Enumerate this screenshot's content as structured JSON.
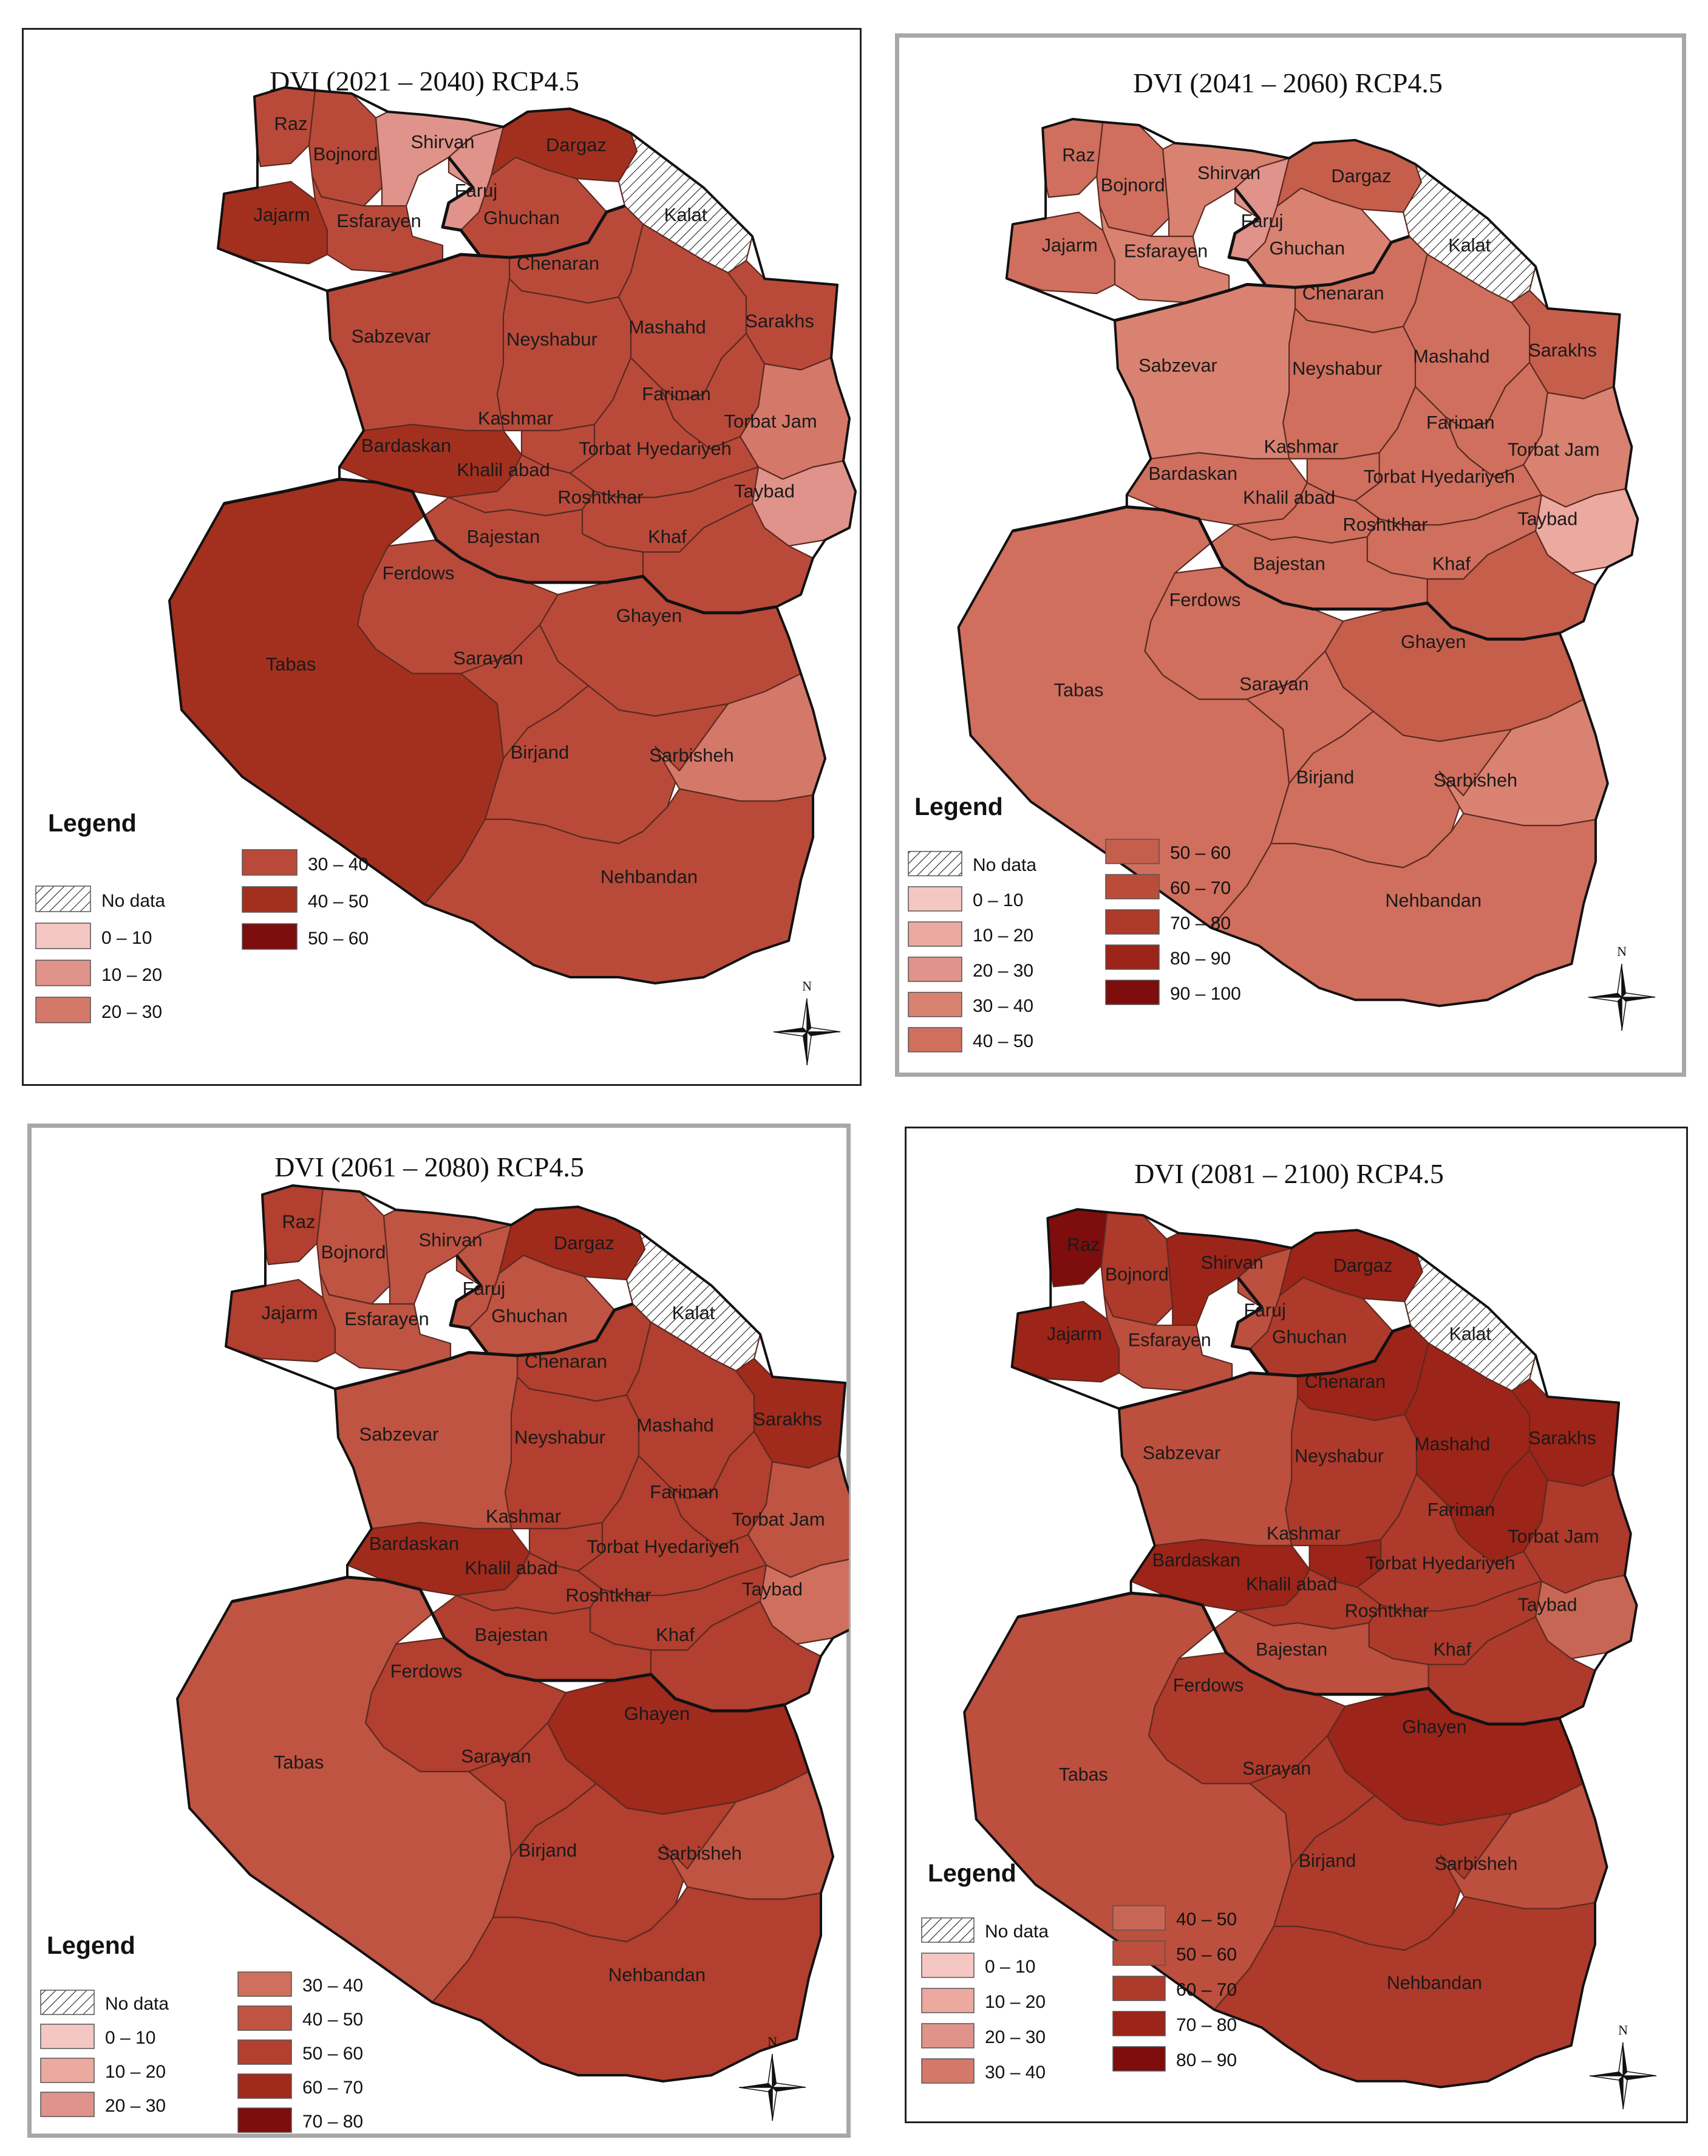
{
  "colors": {
    "class_0_10": "#f5c7c3",
    "class_10_20": "#eca9a0",
    "class_20_30": "#e0938a",
    "class_30_40": "#d4786a",
    "class_40_50": "#c86655",
    "class_50_60": "#bc4f3e",
    "class_60_70": "#ad3a2b",
    "class_70_80": "#a32e20",
    "class_80_90": "#951e15",
    "class_90_100": "#7e0d0d",
    "no_data_hatch": "#111111"
  },
  "region_labels": {
    "Raz": "Raz",
    "Bojnord": "Bojnord",
    "Shirvan": "Shirvan",
    "Faruj": "Faruj",
    "Jajarm": "Jajarm",
    "Esfarayen": "Esfarayen",
    "Dargaz": "Dargaz",
    "Ghuchan": "Ghuchan",
    "Kalat": "Kalat",
    "Chenaran": "Chenaran",
    "Sabzevar": "Sabzevar",
    "Neyshabur": "Neyshabur",
    "Mashahd": "Mashahd",
    "Sarakhs": "Sarakhs",
    "Fariman": "Fariman",
    "TorbatJam": "Torbat Jam",
    "Kashmar": "Kashmar",
    "Bardaskan": "Bardaskan",
    "TorbatHyedariyeh": "Torbat Hyedariyeh",
    "Khalilabad": "Khalil abad",
    "Taybad": "Taybad",
    "Roshtkhar": "Roshtkhar",
    "Bajestan": "Bajestan",
    "Khaf": "Khaf",
    "Ferdows": "Ferdows",
    "Tabas": "Tabas",
    "Ghayen": "Ghayen",
    "Sarayan": "Sarayan",
    "Birjand": "Birjand",
    "Sarbisheh": "Sarbisheh",
    "Nehbandan": "Nehbandan"
  },
  "maps": [
    {
      "title": "DVI (2021 –  2040) RCP4.5",
      "legend_title": "Legend",
      "no_data_label": "No data",
      "north_label": "N",
      "legend_items": [
        {
          "label": "0 –  10",
          "color": "#f5c7c3"
        },
        {
          "label": "10 –  20",
          "color": "#e0938a"
        },
        {
          "label": "20 –  30",
          "color": "#d4786a"
        },
        {
          "label": "30 –  40",
          "color": "#b94a3a"
        },
        {
          "label": "40 –  50",
          "color": "#a3301f"
        },
        {
          "label": "50 –  60",
          "color": "#7e0d0d"
        }
      ],
      "region_values": {
        "Raz": "30-40",
        "Bojnord": "30-40",
        "Shirvan": "10-20",
        "Faruj": "10-20",
        "Jajarm": "40-50",
        "Esfarayen": "30-40",
        "Dargaz": "40-50",
        "Ghuchan": "30-40",
        "Kalat": "No data",
        "Chenaran": "30-40",
        "Sabzevar": "30-40",
        "Neyshabur": "30-40",
        "Mashahd": "30-40",
        "Sarakhs": "30-40",
        "Fariman": "30-40",
        "TorbatJam": "20-30",
        "Kashmar": "30-40",
        "Bardaskan": "40-50",
        "TorbatHyedariyeh": "30-40",
        "Khalilabad": "30-40",
        "Taybad": "10-20",
        "Roshtkhar": "30-40",
        "Bajestan": "30-40",
        "Khaf": "30-40",
        "Ferdows": "30-40",
        "Tabas": "40-50",
        "Ghayen": "30-40",
        "Sarayan": "30-40",
        "Birjand": "30-40",
        "Sarbisheh": "20-30",
        "Nehbandan": "30-40"
      }
    },
    {
      "title": "DVI (2041 – 2060) RCP4.5",
      "legend_title": "Legend",
      "no_data_label": "No data",
      "north_label": "N",
      "legend_items": [
        {
          "label": "0 – 10",
          "color": "#f5c7c3"
        },
        {
          "label": "10 – 20",
          "color": "#eca9a0"
        },
        {
          "label": "20 – 30",
          "color": "#e0938a"
        },
        {
          "label": "30 – 40",
          "color": "#d98271"
        },
        {
          "label": "40 – 50",
          "color": "#d06f5e"
        },
        {
          "label": "50 – 60",
          "color": "#c65e4c"
        },
        {
          "label": "60 – 70",
          "color": "#bc4c3a"
        },
        {
          "label": "70 – 80",
          "color": "#ad3a2b"
        },
        {
          "label": "80 – 90",
          "color": "#9c2418"
        },
        {
          "label": "90 – 100",
          "color": "#7e0d0d"
        }
      ],
      "region_values": {
        "Raz": "40-50",
        "Bojnord": "40-50",
        "Shirvan": "30-40",
        "Faruj": "20-30",
        "Jajarm": "40-50",
        "Esfarayen": "30-40",
        "Dargaz": "50-60",
        "Ghuchan": "30-40",
        "Kalat": "No data",
        "Chenaran": "40-50",
        "Sabzevar": "30-40",
        "Neyshabur": "40-50",
        "Mashahd": "40-50",
        "Sarakhs": "50-60",
        "Fariman": "40-50",
        "TorbatJam": "30-40",
        "Kashmar": "40-50",
        "Bardaskan": "40-50",
        "TorbatHyedariyeh": "40-50",
        "Khalilabad": "40-50",
        "Taybad": "10-20",
        "Roshtkhar": "40-50",
        "Bajestan": "40-50",
        "Khaf": "50-60",
        "Ferdows": "40-50",
        "Tabas": "40-50",
        "Ghayen": "50-60",
        "Sarayan": "40-50",
        "Birjand": "40-50",
        "Sarbisheh": "30-40",
        "Nehbandan": "40-50"
      }
    },
    {
      "title": "DVI (2061 – 2080) RCP4.5",
      "legend_title": "Legend",
      "no_data_label": "No data",
      "north_label": "N",
      "legend_items": [
        {
          "label": "0 – 10",
          "color": "#f5c7c3"
        },
        {
          "label": "10 – 20",
          "color": "#eca9a0"
        },
        {
          "label": "20 – 30",
          "color": "#e0938a"
        },
        {
          "label": "30 – 40",
          "color": "#d06f5e"
        },
        {
          "label": "40 – 50",
          "color": "#bf5442"
        },
        {
          "label": "50 – 60",
          "color": "#b23f2f"
        },
        {
          "label": "60 – 70",
          "color": "#a02a1c"
        },
        {
          "label": "70 – 80",
          "color": "#7e0d0d"
        }
      ],
      "region_values": {
        "Raz": "50-60",
        "Bojnord": "40-50",
        "Shirvan": "40-50",
        "Faruj": "40-50",
        "Jajarm": "50-60",
        "Esfarayen": "40-50",
        "Dargaz": "60-70",
        "Ghuchan": "40-50",
        "Kalat": "No data",
        "Chenaran": "50-60",
        "Sabzevar": "40-50",
        "Neyshabur": "50-60",
        "Mashahd": "50-60",
        "Sarakhs": "60-70",
        "Fariman": "50-60",
        "TorbatJam": "40-50",
        "Kashmar": "50-60",
        "Bardaskan": "60-70",
        "TorbatHyedariyeh": "50-60",
        "Khalilabad": "50-60",
        "Taybad": "30-40",
        "Roshtkhar": "50-60",
        "Bajestan": "50-60",
        "Khaf": "50-60",
        "Ferdows": "50-60",
        "Tabas": "40-50",
        "Ghayen": "60-70",
        "Sarayan": "50-60",
        "Birjand": "50-60",
        "Sarbisheh": "40-50",
        "Nehbandan": "50-60"
      }
    },
    {
      "title": "DVI (2081 – 2100) RCP4.5",
      "legend_title": "Legend",
      "no_data_label": "No data",
      "north_label": "N",
      "legend_items": [
        {
          "label": "0 – 10",
          "color": "#f5c7c3"
        },
        {
          "label": "10 – 20",
          "color": "#eca9a0"
        },
        {
          "label": "20 – 30",
          "color": "#e0938a"
        },
        {
          "label": "30 – 40",
          "color": "#d4786a"
        },
        {
          "label": "40 – 50",
          "color": "#c86655"
        },
        {
          "label": "50 – 60",
          "color": "#bc4f3e"
        },
        {
          "label": "60 – 70",
          "color": "#ad3a2b"
        },
        {
          "label": "70 – 80",
          "color": "#9c2418"
        },
        {
          "label": "80 – 90",
          "color": "#7e0d0d"
        }
      ],
      "region_values": {
        "Raz": "80-90",
        "Bojnord": "60-70",
        "Shirvan": "70-80",
        "Faruj": "50-60",
        "Jajarm": "70-80",
        "Esfarayen": "50-60",
        "Dargaz": "70-80",
        "Ghuchan": "60-70",
        "Kalat": "No data",
        "Chenaran": "70-80",
        "Sabzevar": "50-60",
        "Neyshabur": "60-70",
        "Mashahd": "70-80",
        "Sarakhs": "70-80",
        "Fariman": "70-80",
        "TorbatJam": "60-70",
        "Kashmar": "70-80",
        "Bardaskan": "70-80",
        "TorbatHyedariyeh": "60-70",
        "Khalilabad": "60-70",
        "Taybad": "40-50",
        "Roshtkhar": "60-70",
        "Bajestan": "50-60",
        "Khaf": "60-70",
        "Ferdows": "60-70",
        "Tabas": "50-60",
        "Ghayen": "70-80",
        "Sarayan": "60-70",
        "Birjand": "60-70",
        "Sarbisheh": "50-60",
        "Nehbandan": "60-70"
      }
    }
  ]
}
